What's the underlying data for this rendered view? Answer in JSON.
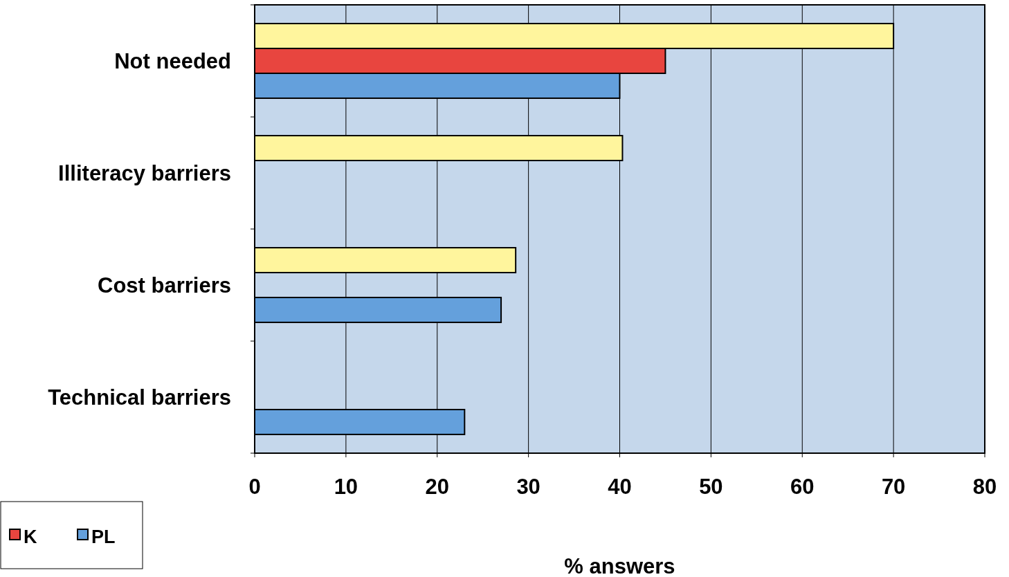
{
  "chart_data": {
    "type": "bar",
    "orientation": "horizontal",
    "categories": [
      "Not needed",
      "Illiteracy barriers",
      "Cost barriers",
      "Technical barriers"
    ],
    "series": [
      {
        "color": "#fff59d",
        "values": [
          70,
          40.3,
          28.6,
          null
        ]
      },
      {
        "name": "K",
        "color": "#e8453f",
        "values": [
          45,
          null,
          null,
          null
        ]
      },
      {
        "name": "PL",
        "color": "#64a0dc",
        "values": [
          40,
          null,
          27,
          23
        ]
      }
    ],
    "xlim": [
      0,
      80
    ],
    "xticks": [
      0,
      10,
      20,
      30,
      40,
      50,
      60,
      70,
      80
    ],
    "xlabel": "% answers",
    "grid": "x",
    "legend": "bottom left"
  }
}
